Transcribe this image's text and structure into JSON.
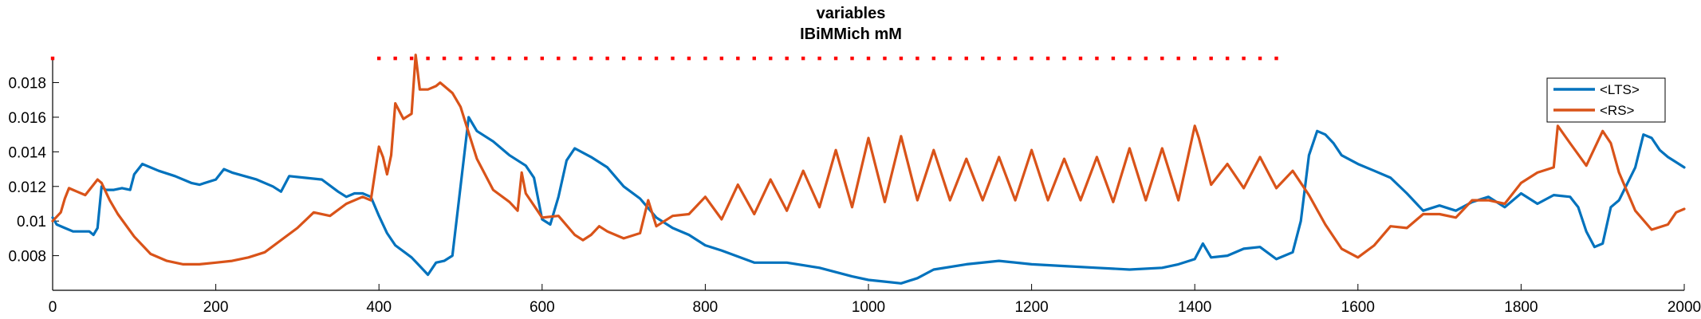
{
  "chart_data": {
    "type": "line",
    "title": "variables",
    "subtitle": "IBiMMich mM",
    "xlabel": "",
    "ylabel": "",
    "xlim": [
      0,
      2000
    ],
    "ylim": [
      0.006,
      0.0195
    ],
    "xticks": [
      0,
      200,
      400,
      600,
      800,
      1000,
      1200,
      1400,
      1600,
      1800,
      2000
    ],
    "yticks": [
      0.008,
      0.01,
      0.012,
      0.014,
      0.016,
      0.018
    ],
    "ytick_labels": [
      "0.008",
      "0.01",
      "0.012",
      "0.014",
      "0.016",
      "0.018"
    ],
    "grid": false,
    "legend_position": "top-right",
    "colors": {
      "LTS": "#0072BD",
      "RS": "#D95319",
      "markers": "#FF0000"
    },
    "series": [
      {
        "name": "<LTS>",
        "x": [
          0,
          5,
          15,
          25,
          35,
          45,
          50,
          55,
          60,
          65,
          75,
          85,
          95,
          100,
          110,
          130,
          150,
          170,
          180,
          200,
          210,
          220,
          250,
          270,
          280,
          290,
          330,
          350,
          360,
          370,
          380,
          390,
          400,
          410,
          420,
          440,
          450,
          460,
          470,
          480,
          490,
          500,
          510,
          520,
          540,
          560,
          580,
          590,
          600,
          610,
          620,
          630,
          640,
          660,
          680,
          700,
          720,
          740,
          760,
          780,
          800,
          820,
          860,
          900,
          940,
          980,
          1000,
          1020,
          1040,
          1060,
          1080,
          1120,
          1160,
          1200,
          1240,
          1280,
          1320,
          1360,
          1380,
          1400,
          1410,
          1420,
          1440,
          1460,
          1480,
          1500,
          1520,
          1530,
          1540,
          1550,
          1560,
          1570,
          1580,
          1600,
          1620,
          1640,
          1660,
          1680,
          1700,
          1720,
          1740,
          1760,
          1780,
          1800,
          1820,
          1840,
          1860,
          1870,
          1880,
          1890,
          1900,
          1910,
          1920,
          1940,
          1950,
          1960,
          1970,
          1980,
          1990,
          2000
        ],
        "values": [
          0.0102,
          0.0098,
          0.0096,
          0.0094,
          0.0094,
          0.0094,
          0.0092,
          0.0096,
          0.012,
          0.0118,
          0.0118,
          0.0119,
          0.0118,
          0.0127,
          0.0133,
          0.0129,
          0.0126,
          0.0122,
          0.0121,
          0.0124,
          0.013,
          0.0128,
          0.0124,
          0.012,
          0.0117,
          0.0126,
          0.0124,
          0.0117,
          0.0114,
          0.0116,
          0.0116,
          0.0114,
          0.0103,
          0.0093,
          0.0086,
          0.0079,
          0.0074,
          0.0069,
          0.0076,
          0.0077,
          0.008,
          0.012,
          0.016,
          0.0152,
          0.0146,
          0.0138,
          0.0132,
          0.0125,
          0.0101,
          0.0098,
          0.0114,
          0.0135,
          0.0142,
          0.0137,
          0.0131,
          0.012,
          0.0113,
          0.0102,
          0.0096,
          0.0092,
          0.0086,
          0.0083,
          0.0076,
          0.0076,
          0.0073,
          0.0068,
          0.0066,
          0.0065,
          0.0064,
          0.0067,
          0.0072,
          0.0075,
          0.0077,
          0.0075,
          0.0074,
          0.0073,
          0.0072,
          0.0073,
          0.0075,
          0.0078,
          0.0087,
          0.0079,
          0.008,
          0.0084,
          0.0085,
          0.0078,
          0.0082,
          0.01,
          0.0138,
          0.0152,
          0.015,
          0.0145,
          0.0138,
          0.0133,
          0.0129,
          0.0125,
          0.0116,
          0.0106,
          0.0109,
          0.0106,
          0.0111,
          0.0114,
          0.0108,
          0.0116,
          0.011,
          0.0115,
          0.0114,
          0.0108,
          0.0094,
          0.0085,
          0.0087,
          0.0108,
          0.0112,
          0.0131,
          0.015,
          0.0148,
          0.0141,
          0.0137,
          0.0134,
          0.0131
        ]
      },
      {
        "name": "<RS>",
        "x": [
          0,
          10,
          15,
          20,
          25,
          30,
          40,
          50,
          55,
          60,
          65,
          70,
          80,
          100,
          120,
          140,
          160,
          180,
          200,
          220,
          240,
          260,
          280,
          300,
          320,
          340,
          360,
          380,
          390,
          400,
          405,
          410,
          415,
          420,
          430,
          440,
          445,
          450,
          460,
          470,
          475,
          480,
          490,
          500,
          510,
          520,
          540,
          560,
          570,
          575,
          580,
          600,
          620,
          640,
          650,
          660,
          670,
          680,
          700,
          720,
          730,
          740,
          760,
          780,
          800,
          820,
          840,
          860,
          880,
          900,
          920,
          940,
          960,
          980,
          1000,
          1020,
          1040,
          1060,
          1080,
          1100,
          1120,
          1140,
          1160,
          1180,
          1200,
          1220,
          1240,
          1260,
          1280,
          1300,
          1320,
          1340,
          1360,
          1380,
          1400,
          1405,
          1420,
          1440,
          1460,
          1480,
          1500,
          1520,
          1540,
          1560,
          1580,
          1600,
          1620,
          1640,
          1660,
          1680,
          1700,
          1720,
          1740,
          1760,
          1780,
          1800,
          1820,
          1840,
          1845,
          1860,
          1880,
          1900,
          1910,
          1920,
          1940,
          1960,
          1980,
          1990,
          2000
        ],
        "values": [
          0.01,
          0.0105,
          0.0113,
          0.0119,
          0.0118,
          0.0117,
          0.0115,
          0.0121,
          0.0124,
          0.0122,
          0.0117,
          0.0112,
          0.0104,
          0.0091,
          0.0081,
          0.0077,
          0.0075,
          0.0075,
          0.0076,
          0.0077,
          0.0079,
          0.0082,
          0.0089,
          0.0096,
          0.0105,
          0.0103,
          0.011,
          0.0114,
          0.0112,
          0.0143,
          0.0137,
          0.0127,
          0.0138,
          0.0168,
          0.0159,
          0.0162,
          0.0196,
          0.0176,
          0.0176,
          0.0178,
          0.018,
          0.0178,
          0.0174,
          0.0166,
          0.0151,
          0.0136,
          0.0118,
          0.0111,
          0.0106,
          0.0128,
          0.0116,
          0.0102,
          0.0103,
          0.0092,
          0.0089,
          0.0092,
          0.0097,
          0.0094,
          0.009,
          0.0093,
          0.0112,
          0.0097,
          0.0103,
          0.0104,
          0.0114,
          0.0101,
          0.0121,
          0.0104,
          0.0124,
          0.0106,
          0.0129,
          0.0108,
          0.0141,
          0.0108,
          0.0148,
          0.0111,
          0.0149,
          0.0112,
          0.0141,
          0.0112,
          0.0136,
          0.0112,
          0.0137,
          0.0112,
          0.0141,
          0.0112,
          0.0136,
          0.0112,
          0.0137,
          0.0111,
          0.0142,
          0.0112,
          0.0142,
          0.0112,
          0.0155,
          0.0148,
          0.0121,
          0.0133,
          0.0119,
          0.0137,
          0.0119,
          0.0129,
          0.0115,
          0.0098,
          0.0084,
          0.0079,
          0.0086,
          0.0097,
          0.0096,
          0.0104,
          0.0104,
          0.0102,
          0.0112,
          0.0112,
          0.011,
          0.0122,
          0.0128,
          0.0131,
          0.0155,
          0.0145,
          0.0132,
          0.0152,
          0.0145,
          0.0128,
          0.0106,
          0.0095,
          0.0098,
          0.0105,
          0.0107
        ]
      },
      {
        "name": "",
        "style": "markers",
        "x": [
          0,
          400,
          420,
          440,
          460,
          480,
          500,
          520,
          540,
          560,
          580,
          600,
          620,
          640,
          660,
          680,
          700,
          720,
          740,
          760,
          780,
          800,
          820,
          840,
          860,
          880,
          900,
          920,
          940,
          960,
          980,
          1000,
          1020,
          1040,
          1060,
          1080,
          1100,
          1120,
          1140,
          1160,
          1180,
          1200,
          1220,
          1240,
          1260,
          1280,
          1300,
          1320,
          1340,
          1360,
          1380,
          1400,
          1420,
          1440,
          1460,
          1480,
          1500
        ],
        "values": [
          0.0194,
          0.0194,
          0.0194,
          0.0194,
          0.0194,
          0.0194,
          0.0194,
          0.0194,
          0.0194,
          0.0194,
          0.0194,
          0.0194,
          0.0194,
          0.0194,
          0.0194,
          0.0194,
          0.0194,
          0.0194,
          0.0194,
          0.0194,
          0.0194,
          0.0194,
          0.0194,
          0.0194,
          0.0194,
          0.0194,
          0.0194,
          0.0194,
          0.0194,
          0.0194,
          0.0194,
          0.0194,
          0.0194,
          0.0194,
          0.0194,
          0.0194,
          0.0194,
          0.0194,
          0.0194,
          0.0194,
          0.0194,
          0.0194,
          0.0194,
          0.0194,
          0.0194,
          0.0194,
          0.0194,
          0.0194,
          0.0194,
          0.0194,
          0.0194,
          0.0194,
          0.0194,
          0.0194,
          0.0194,
          0.0194,
          0.0194
        ]
      }
    ]
  }
}
